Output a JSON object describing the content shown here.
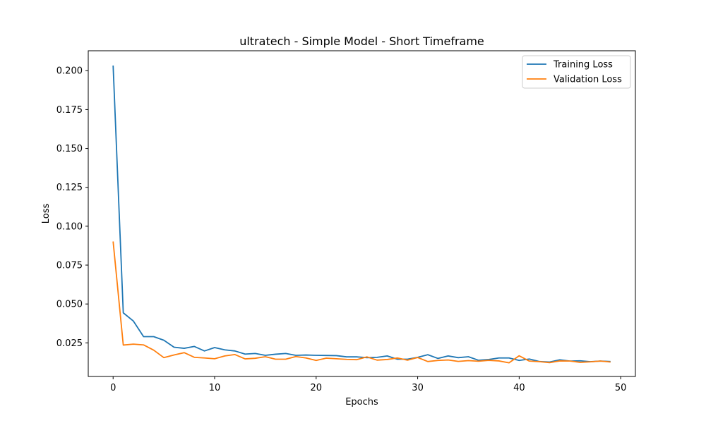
{
  "chart_data": {
    "type": "line",
    "title": "ultratech - Simple Model - Short Timeframe",
    "xlabel": "Epochs",
    "ylabel": "Loss",
    "xlim": [
      -2.45,
      51.45
    ],
    "ylim": [
      0.0034,
      0.2128
    ],
    "xticks": [
      0,
      10,
      20,
      30,
      40,
      50
    ],
    "xtick_labels": [
      "0",
      "10",
      "20",
      "30",
      "40",
      "50"
    ],
    "yticks": [
      0.025,
      0.05,
      0.075,
      0.1,
      0.125,
      0.15,
      0.175,
      0.2
    ],
    "ytick_labels": [
      "0.025",
      "0.050",
      "0.075",
      "0.100",
      "0.125",
      "0.150",
      "0.175",
      "0.200"
    ],
    "grid": false,
    "legend_position": "upper right",
    "x": [
      0,
      1,
      2,
      3,
      4,
      5,
      6,
      7,
      8,
      9,
      10,
      11,
      12,
      13,
      14,
      15,
      16,
      17,
      18,
      19,
      20,
      21,
      22,
      23,
      24,
      25,
      26,
      27,
      28,
      29,
      30,
      31,
      32,
      33,
      34,
      35,
      36,
      37,
      38,
      39,
      40,
      41,
      42,
      43,
      44,
      45,
      46,
      47,
      48,
      49
    ],
    "series": [
      {
        "name": "Training Loss",
        "color": "#1f77b4",
        "values": [
          0.2033,
          0.0443,
          0.039,
          0.029,
          0.029,
          0.0267,
          0.0222,
          0.0215,
          0.0227,
          0.0198,
          0.022,
          0.0205,
          0.0198,
          0.0178,
          0.0182,
          0.017,
          0.0177,
          0.0182,
          0.017,
          0.0172,
          0.017,
          0.0169,
          0.0168,
          0.016,
          0.016,
          0.0155,
          0.0157,
          0.0166,
          0.0145,
          0.0145,
          0.0157,
          0.0174,
          0.015,
          0.0166,
          0.0155,
          0.0161,
          0.0138,
          0.0143,
          0.0153,
          0.0153,
          0.0137,
          0.0146,
          0.013,
          0.0127,
          0.0141,
          0.0133,
          0.0135,
          0.0129,
          0.0133,
          0.013
        ]
      },
      {
        "name": "Validation Loss",
        "color": "#ff7f0e",
        "values": [
          0.0902,
          0.0236,
          0.0242,
          0.0237,
          0.0203,
          0.0155,
          0.0172,
          0.0187,
          0.0157,
          0.0153,
          0.0148,
          0.0166,
          0.0175,
          0.0147,
          0.0151,
          0.0161,
          0.0145,
          0.0145,
          0.0162,
          0.0153,
          0.0137,
          0.0152,
          0.0148,
          0.0144,
          0.0142,
          0.016,
          0.0139,
          0.0143,
          0.0153,
          0.0139,
          0.0156,
          0.013,
          0.0137,
          0.014,
          0.0131,
          0.0136,
          0.0132,
          0.0138,
          0.0134,
          0.0122,
          0.0167,
          0.0133,
          0.0129,
          0.0123,
          0.0134,
          0.0133,
          0.0125,
          0.0128,
          0.0133,
          0.0127
        ]
      }
    ]
  }
}
